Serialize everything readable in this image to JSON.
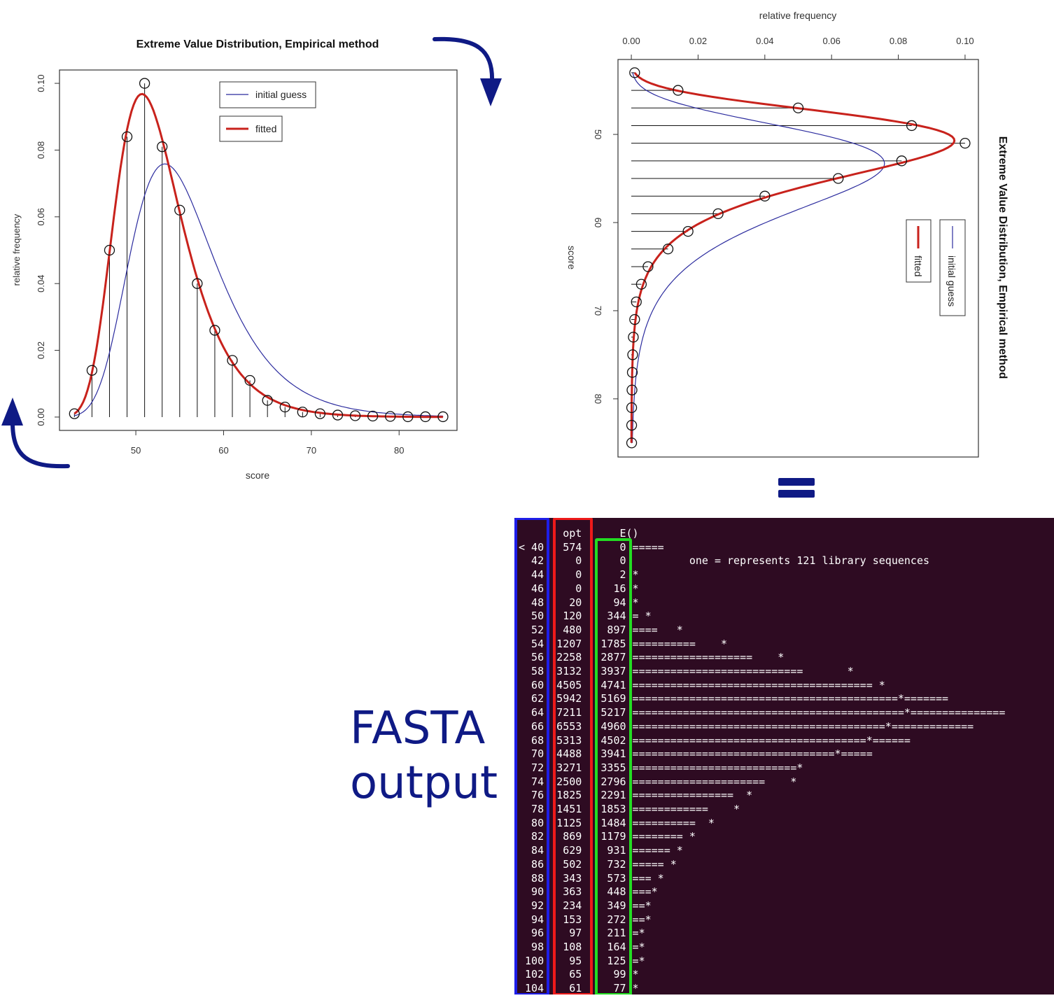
{
  "chart_data": [
    {
      "type": "scatter",
      "title": "Extreme Value Distribution, Empirical method",
      "xlabel": "score",
      "ylabel": "relative frequency",
      "xlim": [
        41.3,
        86.6
      ],
      "ylim": [
        -0.004,
        0.104
      ],
      "xticks": [
        50,
        60,
        70,
        80
      ],
      "yticks": [
        0.0,
        0.02,
        0.04,
        0.06,
        0.08,
        0.1
      ],
      "grid": false,
      "legend_position": "top-right",
      "points": {
        "x": [
          43,
          45,
          47,
          49,
          51,
          53,
          55,
          57,
          59,
          61,
          63,
          65,
          67,
          69,
          71,
          73,
          75,
          77,
          79,
          81,
          83,
          85
        ],
        "y": [
          0.001,
          0.014,
          0.05,
          0.084,
          0.1,
          0.081,
          0.062,
          0.04,
          0.026,
          0.017,
          0.011,
          0.005,
          0.003,
          0.0015,
          0.001,
          0.0006,
          0.0004,
          0.0003,
          0.0002,
          0.0001,
          0.0001,
          0.0001
        ]
      },
      "series": [
        {
          "name": "initial guess",
          "color": "#2b2b9e",
          "mu": 53.3,
          "beta": 4.85
        },
        {
          "name": "fitted",
          "color": "#c8221c",
          "mu": 50.7,
          "beta": 3.8
        }
      ]
    },
    {
      "type": "scatter",
      "orientation": "rotated-90",
      "title": "Extreme Value Distribution, Empirical method",
      "xlabel": "relative frequency",
      "ylabel": "score",
      "score_range": [
        41.5,
        86.6
      ],
      "freq_range": [
        -0.004,
        0.104
      ],
      "freq_ticks": [
        0.0,
        0.02,
        0.04,
        0.06,
        0.08,
        0.1
      ],
      "score_ticks": [
        50,
        60,
        70,
        80
      ],
      "grid": false,
      "legend_position": "bottom-right",
      "points": {
        "x": [
          43,
          45,
          47,
          49,
          51,
          53,
          55,
          57,
          59,
          61,
          63,
          65,
          67,
          69,
          71,
          73,
          75,
          77,
          79,
          81,
          83,
          85
        ],
        "y": [
          0.001,
          0.014,
          0.05,
          0.084,
          0.1,
          0.081,
          0.062,
          0.04,
          0.026,
          0.017,
          0.011,
          0.005,
          0.003,
          0.0015,
          0.001,
          0.0006,
          0.0004,
          0.0003,
          0.0002,
          0.0001,
          0.0001,
          0.0001
        ]
      },
      "series": [
        {
          "name": "initial guess",
          "color": "#2b2b9e",
          "mu": 53.3,
          "beta": 4.85
        },
        {
          "name": "fitted",
          "color": "#c8221c",
          "mu": 50.7,
          "beta": 3.8
        }
      ]
    }
  ],
  "colors": {
    "arrow": "#0f1a85",
    "equals": "#0f1a85",
    "terminal_bg": "#2e0b22",
    "box_blue": "#1e1ee8",
    "box_red": "#ee1a1a",
    "box_green": "#22dd22"
  },
  "fasta": {
    "label_line1": "FASTA",
    "label_line2": "output",
    "lines": [
      "       opt      E()",
      "< 40   574      0 =====",
      "  42     0      0          one = represents 121 library sequences",
      "  44     0      2 *",
      "  46     0     16 *",
      "  48    20     94 *",
      "  50   120    344 = *",
      "  52   480    897 ====   *",
      "  54  1207   1785 ==========    *",
      "  56  2258   2877 ===================    *",
      "  58  3132   3937 ===========================       *",
      "  60  4505   4741 ====================================== *",
      "  62  5942   5169 ==========================================*=======",
      "  64  7211   5217 ===========================================*===============",
      "  66  6553   4960 ========================================*=============",
      "  68  5313   4502 =====================================*======",
      "  70  4488   3941 ================================*=====",
      "  72  3271   3355 ==========================*",
      "  74  2500   2796 =====================    *",
      "  76  1825   2291 ================  *",
      "  78  1451   1853 ============    *",
      "  80  1125   1484 ==========  *",
      "  82   869   1179 ======== *",
      "  84   629    931 ====== *",
      "  86   502    732 ===== *",
      "  88   343    573 === *",
      "  90   363    448 ===*",
      "  92   234    349 ==*",
      "  94   153    272 ==*",
      "  96    97    211 =*",
      "  98   108    164 =*",
      " 100    95    125 =*",
      " 102    65     99 *",
      " 104    61     77 *"
    ]
  }
}
